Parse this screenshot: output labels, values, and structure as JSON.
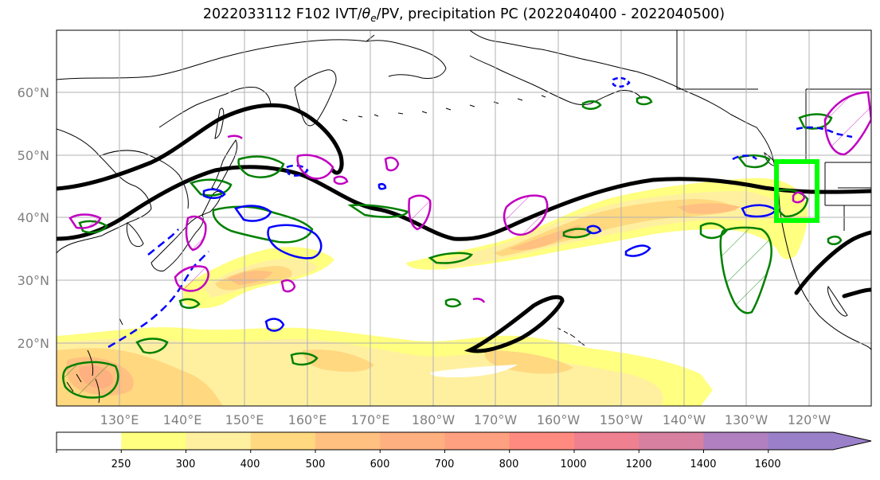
{
  "title": {
    "prefix": "2022033112 F102 IVT/",
    "theta": "θ",
    "theta_sub": "e",
    "suffix": "/PV, precipitation PC (2022040400 - 2022040500)"
  },
  "map": {
    "lat_labels": [
      "60°N",
      "50°N",
      "40°N",
      "30°N",
      "20°N"
    ],
    "lon_labels": [
      "130°E",
      "140°E",
      "150°E",
      "160°E",
      "170°E",
      "180°W",
      "170°W",
      "160°W",
      "150°W",
      "140°W",
      "130°W",
      "120°W"
    ],
    "colors": {
      "pv_contour": "#000000",
      "precip_positive": "#008000",
      "precip_negative": "#0000ff",
      "theta_e": "#c000c0",
      "highlight_box": "#00ff00",
      "land_outline": "#000000"
    }
  },
  "colorbar": {
    "ticks": [
      "250",
      "300",
      "400",
      "500",
      "600",
      "700",
      "800",
      "1000",
      "1200",
      "1400",
      "1600"
    ],
    "colors": [
      "#ffffff",
      "#ffff80",
      "#fff0a0",
      "#ffd880",
      "#ffc080",
      "#ffb080",
      "#ffa080",
      "#ff8a80",
      "#ef8090",
      "#d880a0",
      "#b080c0",
      "#9a80c8"
    ]
  }
}
